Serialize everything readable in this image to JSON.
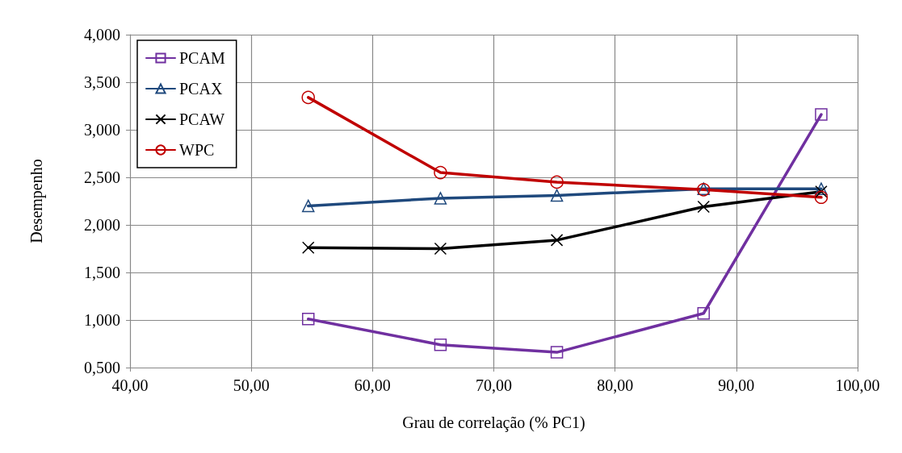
{
  "chart_data": {
    "type": "line",
    "xlabel": "Grau de correlação (% PC1)",
    "ylabel": "Desempenho",
    "x": [
      54.7,
      65.6,
      75.2,
      87.3,
      97.0
    ],
    "series": [
      {
        "name": "PCAM",
        "color": "#7030a0",
        "marker": "square",
        "values": [
          1.01,
          0.74,
          0.66,
          1.07,
          3.16
        ]
      },
      {
        "name": "PCAX",
        "color": "#1f497d",
        "marker": "triangle",
        "values": [
          2.2,
          2.28,
          2.31,
          2.38,
          2.38
        ]
      },
      {
        "name": "PCAW",
        "color": "#000000",
        "marker": "cross",
        "values": [
          1.76,
          1.75,
          1.84,
          2.19,
          2.35
        ]
      },
      {
        "name": "WPC",
        "color": "#c00000",
        "marker": "circle",
        "values": [
          3.34,
          2.55,
          2.45,
          2.37,
          2.29
        ]
      }
    ],
    "xlim": [
      40,
      100
    ],
    "xticks": [
      {
        "value": 40,
        "label": "40,00"
      },
      {
        "value": 50,
        "label": "50,00"
      },
      {
        "value": 60,
        "label": "60,00"
      },
      {
        "value": 70,
        "label": "70,00"
      },
      {
        "value": 80,
        "label": "80,00"
      },
      {
        "value": 90,
        "label": "90,00"
      },
      {
        "value": 100,
        "label": "100,00"
      }
    ],
    "ylim": [
      0.5,
      4
    ],
    "yticks": [
      {
        "value": 0.5,
        "label": "0,500"
      },
      {
        "value": 1,
        "label": "1,000"
      },
      {
        "value": 1.5,
        "label": "1,500"
      },
      {
        "value": 2,
        "label": "2,000"
      },
      {
        "value": 2.5,
        "label": "2,500"
      },
      {
        "value": 3,
        "label": "3,000"
      },
      {
        "value": 3.5,
        "label": "3,500"
      },
      {
        "value": 4,
        "label": "4,000"
      }
    ],
    "grid": true,
    "legend": "top left",
    "line_style": "solid"
  }
}
